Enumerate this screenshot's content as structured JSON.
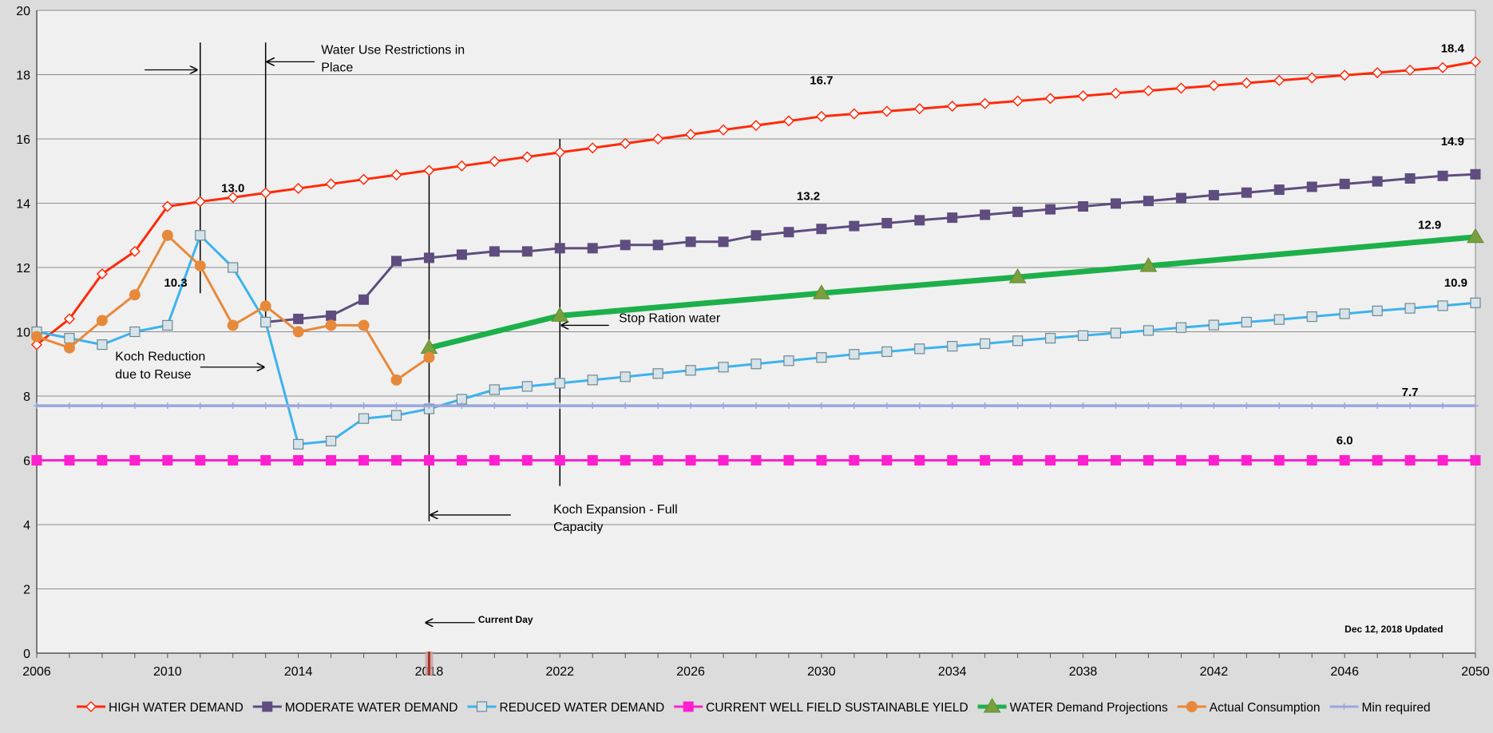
{
  "chart_data": {
    "type": "line",
    "xlim": [
      2006,
      2050
    ],
    "ylim": [
      0,
      20
    ],
    "x_ticks": [
      "2006",
      "2010",
      "2014",
      "2018",
      "2022",
      "2026",
      "2030",
      "2034",
      "2038",
      "2042",
      "2046",
      "2050"
    ],
    "y_ticks": [
      "0",
      "2",
      "4",
      "6",
      "8",
      "10",
      "12",
      "14",
      "16",
      "18",
      "20"
    ],
    "grid": "horizontal",
    "legend_position": "bottom",
    "series": [
      {
        "name": "HIGH WATER DEMAND",
        "color": "#ff2a0a",
        "marker": "diamond-open",
        "x": [
          2006,
          2007,
          2008,
          2009,
          2010,
          2011,
          2012,
          2013,
          2014,
          2015,
          2016,
          2017,
          2018,
          2019,
          2020,
          2021,
          2022,
          2023,
          2024,
          2025,
          2026,
          2027,
          2028,
          2029,
          2030,
          2031,
          2032,
          2033,
          2034,
          2035,
          2036,
          2037,
          2038,
          2039,
          2040,
          2041,
          2042,
          2043,
          2044,
          2045,
          2046,
          2047,
          2048,
          2049,
          2050
        ],
        "y": [
          9.6,
          10.4,
          11.8,
          12.5,
          13.9,
          14.05,
          14.18,
          14.32,
          14.46,
          14.6,
          14.74,
          14.88,
          15.02,
          15.16,
          15.3,
          15.44,
          15.58,
          15.72,
          15.86,
          16.0,
          16.14,
          16.28,
          16.42,
          16.56,
          16.7,
          16.78,
          16.86,
          16.94,
          17.02,
          17.1,
          17.18,
          17.26,
          17.34,
          17.42,
          17.5,
          17.58,
          17.66,
          17.74,
          17.82,
          17.9,
          17.98,
          18.06,
          18.14,
          18.22,
          18.4
        ]
      },
      {
        "name": "MODERATE WATER DEMAND",
        "color": "#5e4d7e",
        "marker": "square",
        "x": [
          2013,
          2014,
          2015,
          2016,
          2017,
          2018,
          2019,
          2020,
          2021,
          2022,
          2023,
          2024,
          2025,
          2026,
          2027,
          2028,
          2029,
          2030,
          2031,
          2032,
          2033,
          2034,
          2035,
          2036,
          2037,
          2038,
          2039,
          2040,
          2041,
          2042,
          2043,
          2044,
          2045,
          2046,
          2047,
          2048,
          2049,
          2050
        ],
        "y": [
          10.3,
          10.4,
          10.5,
          11.0,
          12.2,
          12.3,
          12.4,
          12.5,
          12.5,
          12.6,
          12.6,
          12.7,
          12.7,
          12.8,
          12.8,
          13.0,
          13.1,
          13.2,
          13.29,
          13.38,
          13.47,
          13.55,
          13.64,
          13.73,
          13.81,
          13.9,
          13.99,
          14.07,
          14.16,
          14.25,
          14.33,
          14.42,
          14.51,
          14.6,
          14.68,
          14.77,
          14.85,
          14.9
        ]
      },
      {
        "name": "REDUCED WATER DEMAND",
        "color": "#3cb3ee",
        "marker": "square-open",
        "x": [
          2006,
          2007,
          2008,
          2009,
          2010,
          2011,
          2012,
          2013,
          2014,
          2015,
          2016,
          2017,
          2018,
          2019,
          2020,
          2021,
          2022,
          2023,
          2024,
          2025,
          2026,
          2027,
          2028,
          2029,
          2030,
          2031,
          2032,
          2033,
          2034,
          2035,
          2036,
          2037,
          2038,
          2039,
          2040,
          2041,
          2042,
          2043,
          2044,
          2045,
          2046,
          2047,
          2048,
          2049,
          2050
        ],
        "y": [
          10.0,
          9.8,
          9.6,
          10.0,
          10.2,
          13.0,
          12.0,
          10.3,
          6.5,
          6.6,
          7.3,
          7.4,
          7.6,
          7.9,
          8.2,
          8.3,
          8.4,
          8.5,
          8.6,
          8.7,
          8.8,
          8.9,
          9.0,
          9.1,
          9.2,
          9.3,
          9.38,
          9.47,
          9.55,
          9.63,
          9.72,
          9.8,
          9.88,
          9.96,
          10.04,
          10.13,
          10.21,
          10.3,
          10.38,
          10.47,
          10.56,
          10.65,
          10.73,
          10.81,
          10.9
        ]
      },
      {
        "name": "CURRENT WELL FIELD SUSTAINABLE YIELD",
        "color": "#ff1fd0",
        "marker": "square",
        "x": [
          2006,
          2007,
          2008,
          2009,
          2010,
          2011,
          2012,
          2013,
          2014,
          2015,
          2016,
          2017,
          2018,
          2019,
          2020,
          2021,
          2022,
          2023,
          2024,
          2025,
          2026,
          2027,
          2028,
          2029,
          2030,
          2031,
          2032,
          2033,
          2034,
          2035,
          2036,
          2037,
          2038,
          2039,
          2040,
          2041,
          2042,
          2043,
          2044,
          2045,
          2046,
          2047,
          2048,
          2049,
          2050
        ],
        "y": [
          6,
          6,
          6,
          6,
          6,
          6,
          6,
          6,
          6,
          6,
          6,
          6,
          6,
          6,
          6,
          6,
          6,
          6,
          6,
          6,
          6,
          6,
          6,
          6,
          6,
          6,
          6,
          6,
          6,
          6,
          6,
          6,
          6,
          6,
          6,
          6,
          6,
          6,
          6,
          6,
          6,
          6,
          6,
          6,
          6
        ]
      },
      {
        "name": "WATER Demand Projections",
        "color": "#1db04a",
        "marker": "triangle",
        "x": [
          2018,
          2022,
          2030,
          2036,
          2040,
          2050
        ],
        "y": [
          9.5,
          10.5,
          11.2,
          11.7,
          12.05,
          12.95
        ]
      },
      {
        "name": "Actual Consumption",
        "color": "#e7893a",
        "marker": "circle",
        "x": [
          2006,
          2007,
          2008,
          2009,
          2010,
          2011,
          2012,
          2013,
          2014,
          2015,
          2016,
          2017,
          2018
        ],
        "y": [
          9.85,
          9.5,
          10.35,
          11.15,
          13.0,
          12.05,
          10.2,
          10.8,
          10.0,
          10.2,
          10.2,
          8.5,
          9.2
        ]
      },
      {
        "name": "Min required",
        "color": "#9aa6dd",
        "marker": "cross",
        "x": [
          2006,
          2007,
          2008,
          2009,
          2010,
          2011,
          2012,
          2013,
          2014,
          2015,
          2016,
          2017,
          2018,
          2019,
          2020,
          2021,
          2022,
          2023,
          2024,
          2025,
          2026,
          2027,
          2028,
          2029,
          2030,
          2031,
          2032,
          2033,
          2034,
          2035,
          2036,
          2037,
          2038,
          2039,
          2040,
          2041,
          2042,
          2043,
          2044,
          2045,
          2046,
          2047,
          2048,
          2049,
          2050
        ],
        "y": [
          7.7,
          7.7,
          7.7,
          7.7,
          7.7,
          7.7,
          7.7,
          7.7,
          7.7,
          7.7,
          7.7,
          7.7,
          7.7,
          7.7,
          7.7,
          7.7,
          7.7,
          7.7,
          7.7,
          7.7,
          7.7,
          7.7,
          7.7,
          7.7,
          7.7,
          7.7,
          7.7,
          7.7,
          7.7,
          7.7,
          7.7,
          7.7,
          7.7,
          7.7,
          7.7,
          7.7,
          7.7,
          7.7,
          7.7,
          7.7,
          7.7,
          7.7,
          7.7,
          7.7,
          7.7
        ]
      }
    ],
    "data_labels": [
      {
        "text": "18.4",
        "x": 2049.3,
        "y": 18.7
      },
      {
        "text": "16.7",
        "x": 2030.0,
        "y": 17.7
      },
      {
        "text": "14.9",
        "x": 2049.3,
        "y": 15.8
      },
      {
        "text": "13.2",
        "x": 2029.6,
        "y": 14.1
      },
      {
        "text": "13.0",
        "x": 2012.0,
        "y": 14.35
      },
      {
        "text": "12.9",
        "x": 2048.6,
        "y": 13.2
      },
      {
        "text": "10.9",
        "x": 2049.4,
        "y": 11.4
      },
      {
        "text": "10.3",
        "x": 2010.25,
        "y": 11.4
      },
      {
        "text": "7.7",
        "x": 2048.0,
        "y": 8.0
      },
      {
        "text": "6.0",
        "x": 2046.0,
        "y": 6.5
      }
    ],
    "annotations": [
      {
        "text": "Water Use Restrictions in",
        "x": 2014.7,
        "y": 18.65
      },
      {
        "text": "Place",
        "x": 2014.7,
        "y": 18.1
      },
      {
        "text": "Koch Reduction",
        "x": 2008.4,
        "y": 9.1
      },
      {
        "text": "due to Reuse",
        "x": 2008.4,
        "y": 8.55
      },
      {
        "text": "Stop Ration water",
        "x": 2023.8,
        "y": 10.3
      },
      {
        "text": "Koch Expansion - Full",
        "x": 2021.8,
        "y": 4.35
      },
      {
        "text": "Capacity",
        "x": 2021.8,
        "y": 3.8
      },
      {
        "text": "Current Day",
        "x": 2019.5,
        "y": 0.95
      },
      {
        "text": "Dec 12, 2018 Updated",
        "x": 2046.0,
        "y": 0.65
      }
    ]
  }
}
